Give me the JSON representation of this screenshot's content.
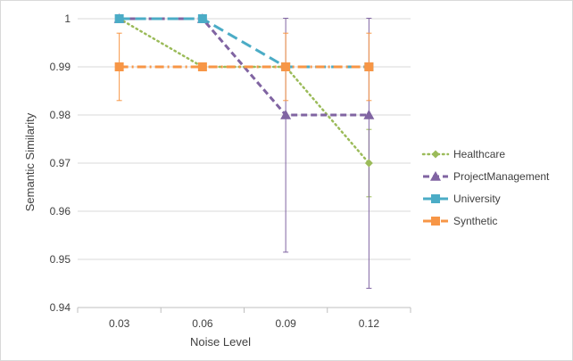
{
  "chart_data": {
    "type": "line",
    "xlabel": "Noise Level",
    "ylabel": "Semantic Similarity",
    "categories": [
      "0.03",
      "0.06",
      "0.09",
      "0.12"
    ],
    "ylim": [
      0.94,
      1.0
    ],
    "yticks": [
      "0.94",
      "0.95",
      "0.96",
      "0.97",
      "0.98",
      "0.99",
      "1"
    ],
    "grid": true,
    "legend_position": "right",
    "series": [
      {
        "name": "Healthcare",
        "values": [
          1.0,
          0.99,
          0.99,
          0.97
        ],
        "color": "#9bbb59",
        "marker": "diamond",
        "dash": "dotted",
        "error": [
          null,
          null,
          null,
          0.007
        ]
      },
      {
        "name": "ProjectManagement",
        "values": [
          1.0,
          1.0,
          0.98,
          0.98
        ],
        "color": "#8064a2",
        "marker": "triangle",
        "dash": "dashed",
        "error": [
          null,
          null,
          0.0285,
          0.036
        ]
      },
      {
        "name": "University",
        "values": [
          1.0,
          1.0,
          0.99,
          0.99
        ],
        "color": "#4bacc6",
        "marker": "square",
        "dash": "long-dash",
        "error": [
          null,
          null,
          null,
          null
        ]
      },
      {
        "name": "Synthetic",
        "values": [
          0.99,
          0.99,
          0.99,
          0.99
        ],
        "color": "#f79646",
        "marker": "square",
        "dash": "dash-dot",
        "error": [
          0.007,
          null,
          0.007,
          0.007
        ]
      }
    ]
  }
}
